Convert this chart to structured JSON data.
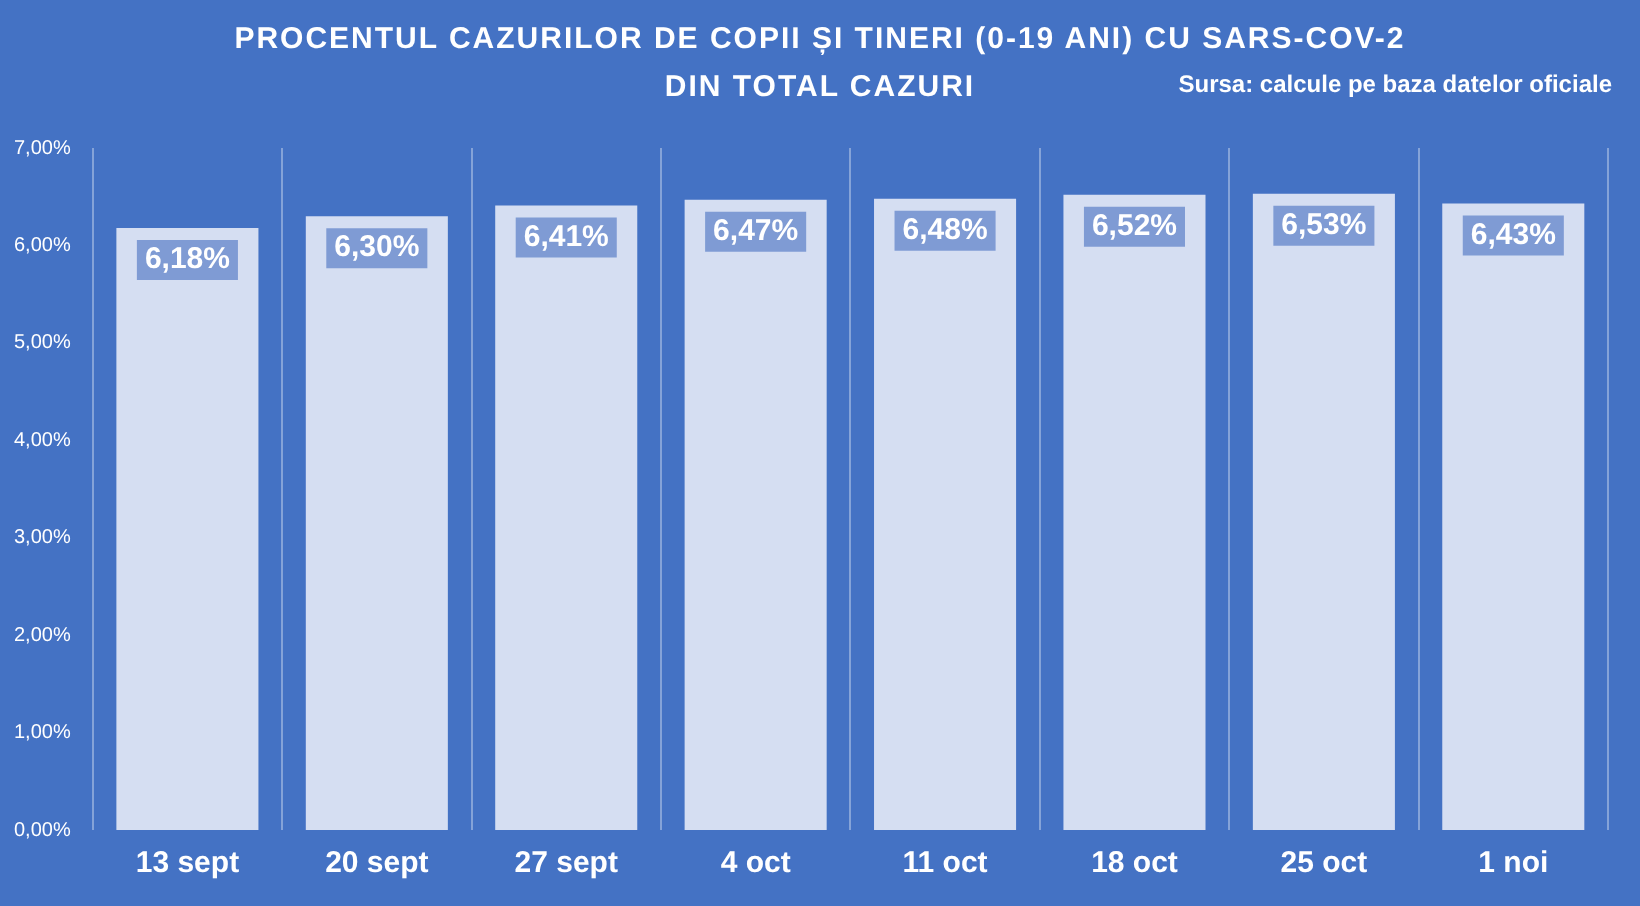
{
  "chart_data": {
    "type": "bar",
    "title": "PROCENTUL CAZURILOR DE COPII ȘI TINERI (0-19 ANI) CU SARS-COV-2\nDIN TOTAL CAZURI",
    "annotations": [
      "Sursa: calcule pe baza datelor oficiale"
    ],
    "categories": [
      "13 sept",
      "20 sept",
      "27 sept",
      "4 oct",
      "11 oct",
      "18 oct",
      "25 oct",
      "1 noi"
    ],
    "values": [
      6.18,
      6.3,
      6.41,
      6.47,
      6.48,
      6.52,
      6.53,
      6.43
    ],
    "value_labels": [
      "6,18%",
      "6,30%",
      "6,41%",
      "6,47%",
      "6,48%",
      "6,52%",
      "6,53%",
      "6,43%"
    ],
    "color": "#d5def2",
    "ylim": [
      0,
      7
    ],
    "yticks": [
      {
        "value": 0,
        "label": "0,00%"
      },
      {
        "value": 1,
        "label": "1,00%"
      },
      {
        "value": 2,
        "label": "2,00%"
      },
      {
        "value": 3,
        "label": "3,00%"
      },
      {
        "value": 4,
        "label": "4,00%"
      },
      {
        "value": 5,
        "label": "5,00%"
      },
      {
        "value": 6,
        "label": "6,00%"
      },
      {
        "value": 7,
        "label": "7,00%"
      }
    ],
    "grid": "x",
    "legend": false
  }
}
